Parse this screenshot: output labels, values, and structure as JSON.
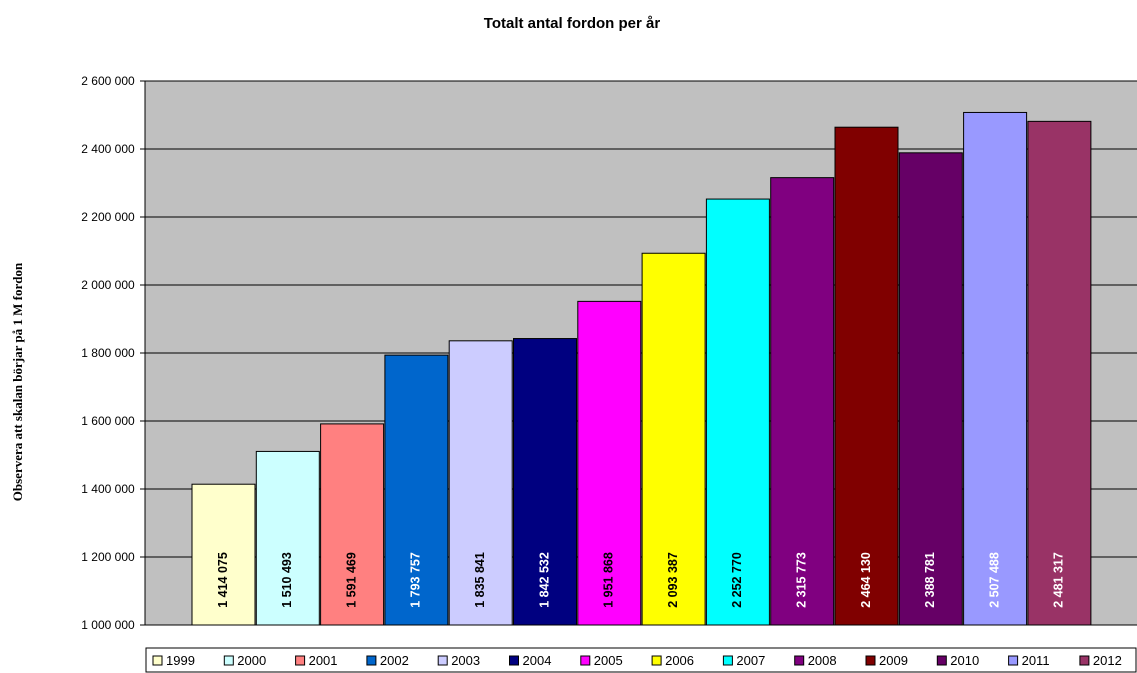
{
  "chart_data": {
    "type": "bar",
    "title": "Totalt antal fordon per år",
    "ylabel": "Observera att skalan börjar på 1 M fordon",
    "xlabel": "",
    "ylim": [
      1000000,
      2600000
    ],
    "yticks": [
      "1 000 000",
      "1 200 000",
      "1 400 000",
      "1 600 000",
      "1 800 000",
      "2 000 000",
      "2 200 000",
      "2 400 000",
      "2 600 000"
    ],
    "grid": true,
    "legend_position": "bottom",
    "categories": [
      "1999",
      "2000",
      "2001",
      "2002",
      "2003",
      "2004",
      "2005",
      "2006",
      "2007",
      "2008",
      "2009",
      "2010",
      "2011",
      "2012"
    ],
    "values": [
      1414075,
      1510493,
      1591469,
      1793757,
      1835841,
      1842532,
      1951868,
      2093387,
      2252770,
      2315773,
      2464130,
      2388781,
      2507488,
      2481317
    ],
    "value_labels": [
      "1 414 075",
      "1 510 493",
      "1 591 469",
      "1 793 757",
      "1 835 841",
      "1 842 532",
      "1 951 868",
      "2 093 387",
      "2 252 770",
      "2 315 773",
      "2 464 130",
      "2 388 781",
      "2 507 488",
      "2 481 317"
    ],
    "colors": [
      "#FFFFCC",
      "#CCFFFF",
      "#FF8080",
      "#0066CC",
      "#CCCCFF",
      "#000080",
      "#FF00FF",
      "#FFFF00",
      "#00FFFF",
      "#800080",
      "#800000",
      "#660066",
      "#9999FF",
      "#993366"
    ],
    "label_colors": [
      "#000000",
      "#000000",
      "#000000",
      "#ffffff",
      "#000000",
      "#ffffff",
      "#000000",
      "#000000",
      "#000000",
      "#ffffff",
      "#ffffff",
      "#ffffff",
      "#ffffff",
      "#ffffff"
    ],
    "plot_background": "#C0C0C0"
  }
}
